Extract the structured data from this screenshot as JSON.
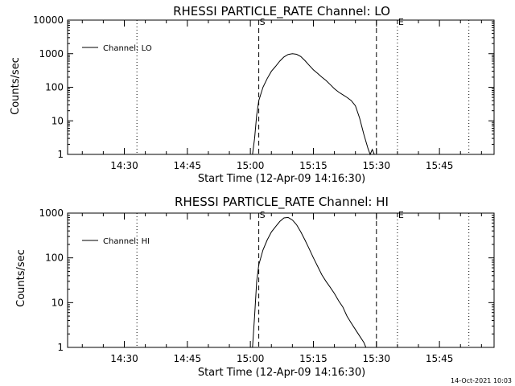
{
  "footer_timestamp": "14-Oct-2021 10:03",
  "chart_data": [
    {
      "type": "line",
      "title": "RHESSI PARTICLE_RATE Channel: LO",
      "xlabel": "Start Time (12-Apr-09 14:16:30)",
      "ylabel": "Counts/sec",
      "y_scale": "log",
      "ylim": [
        1,
        10000
      ],
      "yticks": [
        1,
        10,
        100,
        1000,
        10000
      ],
      "ytick_labels": [
        "1",
        "10",
        "100",
        "1000",
        "10000"
      ],
      "xlim": [
        "14:16:30",
        "15:58:00"
      ],
      "xticks": [
        "14:30",
        "14:45",
        "15:00",
        "15:15",
        "15:30",
        "15:45"
      ],
      "legend": {
        "position": "top-left",
        "entries": [
          "Channel: LO"
        ]
      },
      "markers": [
        {
          "label": "",
          "time": "14:33:00",
          "style": "dotted"
        },
        {
          "label": "S",
          "time": "15:02:00",
          "style": "dashed"
        },
        {
          "label": "",
          "time": "15:30:00",
          "style": "dashed"
        },
        {
          "label": "E",
          "time": "15:35:00",
          "style": "dotted"
        },
        {
          "label": "",
          "time": "15:52:00",
          "style": "dotted"
        }
      ],
      "series": [
        {
          "name": "Channel: LO",
          "x": [
            "15:00:30",
            "15:01:00",
            "15:01:30",
            "15:02:00",
            "15:03:00",
            "15:04:00",
            "15:05:00",
            "15:06:00",
            "15:07:00",
            "15:08:00",
            "15:09:00",
            "15:10:00",
            "15:11:00",
            "15:12:00",
            "15:13:00",
            "15:14:00",
            "15:15:00",
            "15:16:00",
            "15:17:00",
            "15:18:00",
            "15:19:00",
            "15:20:00",
            "15:21:00",
            "15:22:00",
            "15:23:00",
            "15:24:00",
            "15:25:00",
            "15:26:00",
            "15:27:00",
            "15:28:00",
            "15:28:30",
            "15:29:00",
            "15:29:30",
            "15:30:00"
          ],
          "y": [
            1,
            3,
            15,
            40,
            100,
            180,
            300,
            420,
            600,
            800,
            950,
            1000,
            960,
            820,
            620,
            450,
            330,
            260,
            200,
            160,
            120,
            90,
            72,
            60,
            50,
            40,
            28,
            12,
            4,
            1.5,
            1,
            1.4,
            1,
            1
          ]
        }
      ]
    },
    {
      "type": "line",
      "title": "RHESSI PARTICLE_RATE Channel: HI",
      "xlabel": "Start Time (12-Apr-09 14:16:30)",
      "ylabel": "Counts/sec",
      "y_scale": "log",
      "ylim": [
        1,
        1000
      ],
      "yticks": [
        1,
        10,
        100,
        1000
      ],
      "ytick_labels": [
        "1",
        "10",
        "100",
        "1000"
      ],
      "xlim": [
        "14:16:30",
        "15:58:00"
      ],
      "xticks": [
        "14:30",
        "14:45",
        "15:00",
        "15:15",
        "15:30",
        "15:45"
      ],
      "legend": {
        "position": "top-left",
        "entries": [
          "Channel: HI"
        ]
      },
      "markers": [
        {
          "label": "",
          "time": "14:33:00",
          "style": "dotted"
        },
        {
          "label": "S",
          "time": "15:02:00",
          "style": "dashed"
        },
        {
          "label": "",
          "time": "15:30:00",
          "style": "dashed"
        },
        {
          "label": "E",
          "time": "15:35:00",
          "style": "dotted"
        },
        {
          "label": "",
          "time": "15:52:00",
          "style": "dotted"
        }
      ],
      "series": [
        {
          "name": "Channel: HI",
          "x": [
            "15:00:30",
            "15:01:00",
            "15:01:30",
            "15:02:00",
            "15:03:00",
            "15:04:00",
            "15:05:00",
            "15:06:00",
            "15:07:00",
            "15:08:00",
            "15:09:00",
            "15:10:00",
            "15:11:00",
            "15:12:00",
            "15:13:00",
            "15:14:00",
            "15:15:00",
            "15:16:00",
            "15:17:00",
            "15:18:00",
            "15:19:00",
            "15:20:00",
            "15:21:00",
            "15:22:00",
            "15:23:00",
            "15:24:00",
            "15:25:00",
            "15:26:00",
            "15:27:00",
            "15:27:30"
          ],
          "y": [
            1,
            5,
            30,
            70,
            150,
            250,
            380,
            500,
            650,
            780,
            800,
            700,
            550,
            380,
            250,
            160,
            100,
            65,
            42,
            30,
            22,
            16,
            11,
            8,
            5,
            3.5,
            2.5,
            1.8,
            1.3,
            1
          ]
        }
      ]
    }
  ]
}
